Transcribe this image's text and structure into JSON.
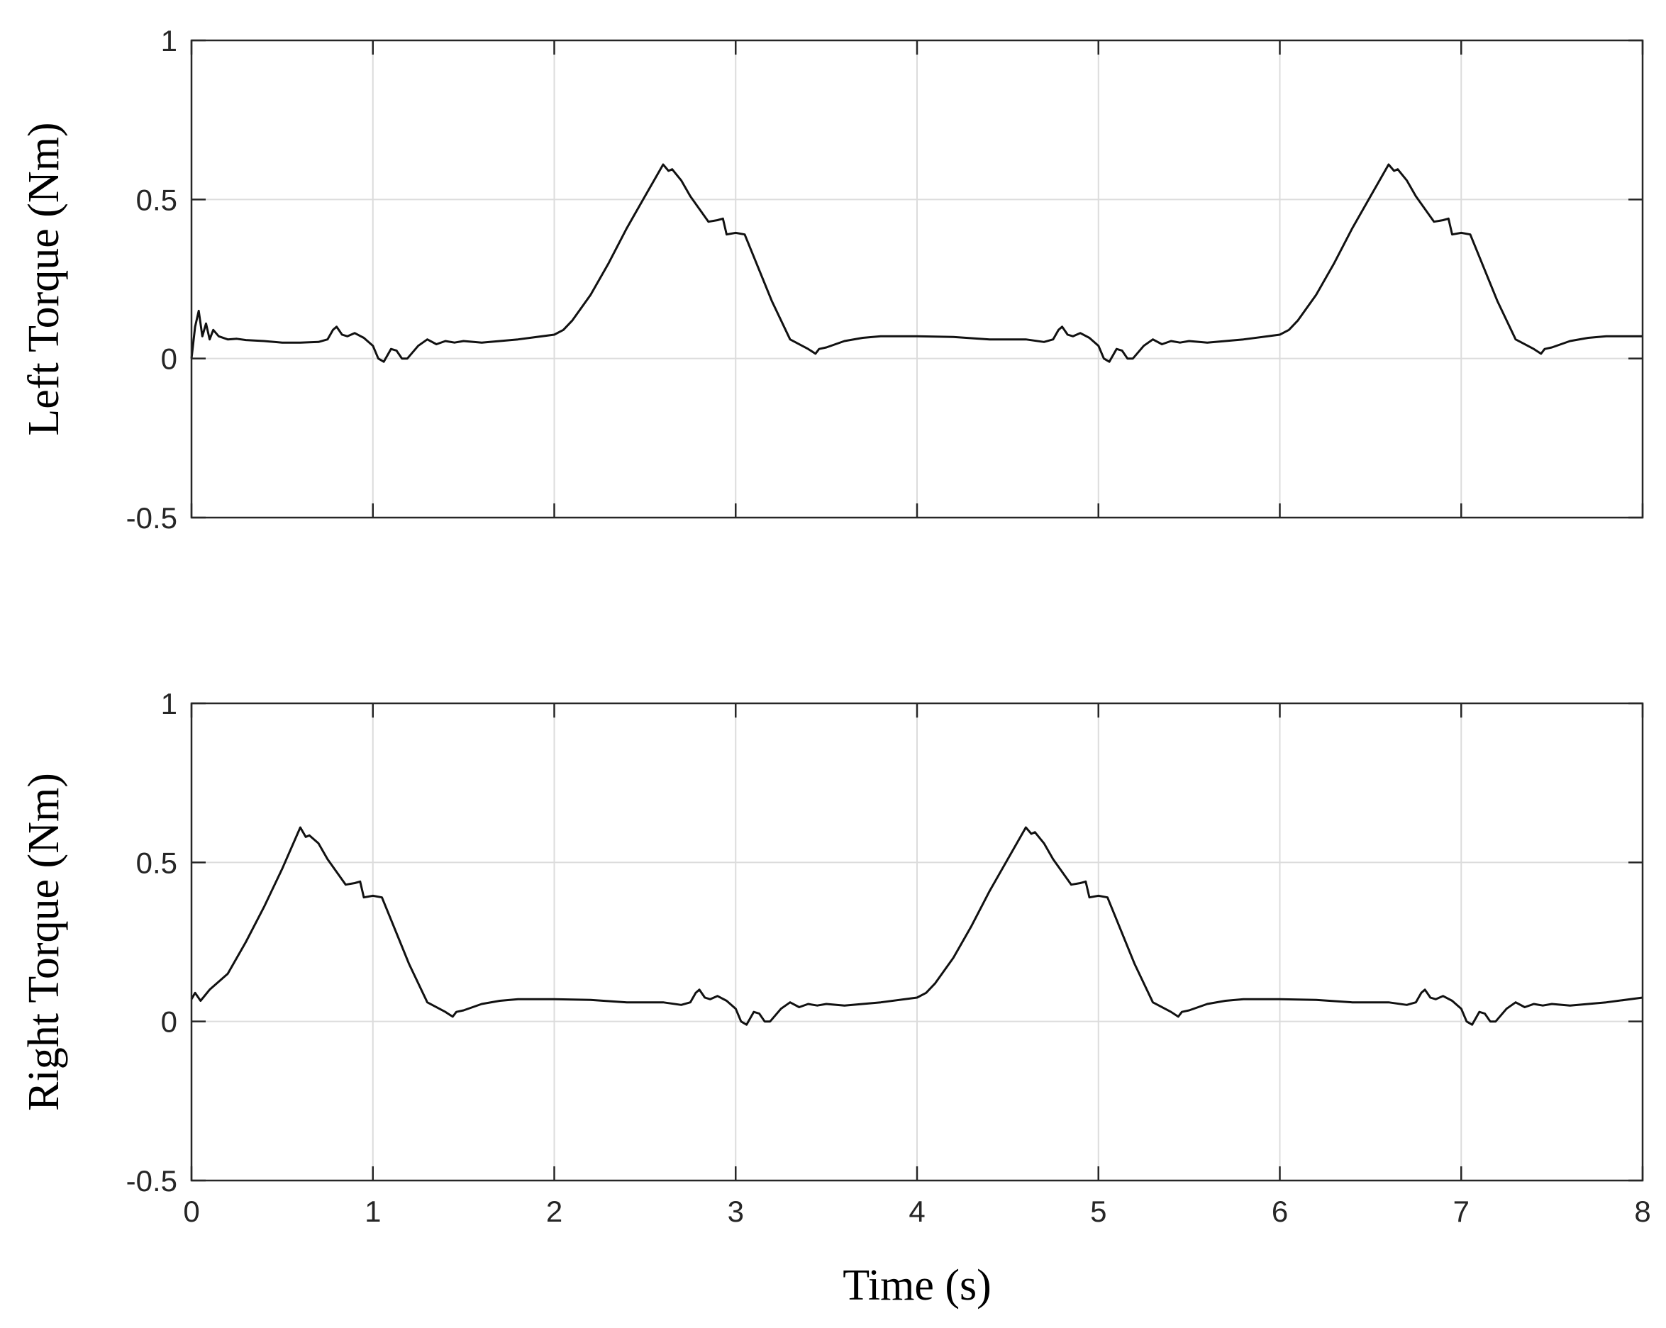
{
  "chart_data": [
    {
      "type": "line",
      "ylabel": "Left Torque (Nm)",
      "xlabel": "",
      "xlim": [
        0,
        8
      ],
      "ylim": [
        -0.5,
        1
      ],
      "xticks": [
        0,
        1,
        2,
        3,
        4,
        5,
        6,
        7,
        8
      ],
      "xtick_labels": [
        "",
        "",
        "",
        "",
        "",
        "",
        "",
        "",
        ""
      ],
      "yticks": [
        -0.5,
        0,
        0.5,
        1
      ],
      "ytick_labels": [
        "-0.5",
        "0",
        "0.5",
        "1"
      ],
      "grid": true,
      "series": [
        {
          "color": "#111111",
          "x": [
            0,
            0.02,
            0.04,
            0.06,
            0.08,
            0.1,
            0.12,
            0.15,
            0.2,
            0.25,
            0.3,
            0.4,
            0.5,
            0.6,
            0.7,
            0.75,
            0.78,
            0.8,
            0.83,
            0.86,
            0.9,
            0.95,
            1.0,
            1.03,
            1.06,
            1.08,
            1.1,
            1.13,
            1.16,
            1.19,
            1.22,
            1.25,
            1.3,
            1.35,
            1.4,
            1.45,
            1.5,
            1.6,
            1.8,
            2.0,
            2.05,
            2.1,
            2.2,
            2.3,
            2.4,
            2.5,
            2.6,
            2.63,
            2.65,
            2.7,
            2.75,
            2.8,
            2.85,
            2.9,
            2.93,
            2.95,
            3.0,
            3.05,
            3.1,
            3.15,
            3.2,
            3.3,
            3.4,
            3.44,
            3.46,
            3.5,
            3.6,
            3.7,
            3.8,
            4.0,
            4.2,
            4.4,
            4.6,
            4.7,
            4.75,
            4.78,
            4.8,
            4.83,
            4.86,
            4.9,
            4.95,
            5.0,
            5.03,
            5.06,
            5.08,
            5.1,
            5.13,
            5.16,
            5.19,
            5.22,
            5.25,
            5.3,
            5.35,
            5.4,
            5.45,
            5.5,
            5.6,
            5.8,
            6.0,
            6.05,
            6.1,
            6.2,
            6.3,
            6.4,
            6.5,
            6.6,
            6.63,
            6.65,
            6.7,
            6.75,
            6.8,
            6.85,
            6.9,
            6.93,
            6.95,
            7.0,
            7.05,
            7.1,
            7.15,
            7.2,
            7.3,
            7.4,
            7.44,
            7.46,
            7.5,
            7.6,
            7.7,
            7.8,
            8.0
          ],
          "y": [
            0.0,
            0.1,
            0.15,
            0.07,
            0.11,
            0.06,
            0.09,
            0.07,
            0.06,
            0.062,
            0.058,
            0.055,
            0.05,
            0.05,
            0.052,
            0.06,
            0.09,
            0.1,
            0.075,
            0.07,
            0.08,
            0.065,
            0.04,
            0.0,
            -0.01,
            0.01,
            0.03,
            0.025,
            0.0,
            0.0,
            0.02,
            0.04,
            0.06,
            0.045,
            0.055,
            0.05,
            0.055,
            0.05,
            0.06,
            0.075,
            0.09,
            0.12,
            0.2,
            0.3,
            0.41,
            0.51,
            0.61,
            0.59,
            0.595,
            0.56,
            0.51,
            0.47,
            0.43,
            0.435,
            0.44,
            0.39,
            0.395,
            0.39,
            0.32,
            0.25,
            0.18,
            0.06,
            0.03,
            0.015,
            0.03,
            0.035,
            0.055,
            0.065,
            0.07,
            0.07,
            0.068,
            0.06,
            0.06,
            0.052,
            0.06,
            0.09,
            0.1,
            0.075,
            0.07,
            0.08,
            0.065,
            0.04,
            0.0,
            -0.01,
            0.01,
            0.03,
            0.025,
            0.0,
            0.0,
            0.02,
            0.04,
            0.06,
            0.045,
            0.055,
            0.05,
            0.055,
            0.05,
            0.06,
            0.075,
            0.09,
            0.12,
            0.2,
            0.3,
            0.41,
            0.51,
            0.61,
            0.59,
            0.595,
            0.56,
            0.51,
            0.47,
            0.43,
            0.435,
            0.44,
            0.39,
            0.395,
            0.39,
            0.32,
            0.25,
            0.18,
            0.06,
            0.03,
            0.015,
            0.03,
            0.035,
            0.055,
            0.065,
            0.07,
            0.07
          ]
        }
      ]
    },
    {
      "type": "line",
      "ylabel": "Right Torque (Nm)",
      "xlabel": "Time (s)",
      "xlim": [
        0,
        8
      ],
      "ylim": [
        -0.5,
        1
      ],
      "xticks": [
        0,
        1,
        2,
        3,
        4,
        5,
        6,
        7,
        8
      ],
      "xtick_labels": [
        "0",
        "1",
        "2",
        "3",
        "4",
        "5",
        "6",
        "7",
        "8"
      ],
      "yticks": [
        -0.5,
        0,
        0.5,
        1
      ],
      "ytick_labels": [
        "-0.5",
        "0",
        "0.5",
        "1"
      ],
      "grid": true,
      "series": [
        {
          "color": "#111111",
          "x": [
            0,
            0.02,
            0.05,
            0.1,
            0.2,
            0.3,
            0.4,
            0.5,
            0.6,
            0.63,
            0.65,
            0.7,
            0.75,
            0.8,
            0.85,
            0.9,
            0.93,
            0.95,
            1.0,
            1.05,
            1.1,
            1.15,
            1.2,
            1.3,
            1.4,
            1.44,
            1.46,
            1.5,
            1.6,
            1.7,
            1.8,
            2.0,
            2.2,
            2.4,
            2.6,
            2.7,
            2.75,
            2.78,
            2.8,
            2.83,
            2.86,
            2.9,
            2.95,
            3.0,
            3.03,
            3.06,
            3.08,
            3.1,
            3.13,
            3.16,
            3.19,
            3.22,
            3.25,
            3.3,
            3.35,
            3.4,
            3.45,
            3.5,
            3.6,
            3.8,
            4.0,
            4.05,
            4.1,
            4.2,
            4.3,
            4.4,
            4.5,
            4.6,
            4.63,
            4.65,
            4.7,
            4.75,
            4.8,
            4.85,
            4.9,
            4.93,
            4.95,
            5.0,
            5.05,
            5.1,
            5.15,
            5.2,
            5.3,
            5.4,
            5.44,
            5.46,
            5.5,
            5.6,
            5.7,
            5.8,
            6.0,
            6.2,
            6.4,
            6.6,
            6.7,
            6.75,
            6.78,
            6.8,
            6.83,
            6.86,
            6.9,
            6.95,
            7.0,
            7.03,
            7.06,
            7.08,
            7.1,
            7.13,
            7.16,
            7.19,
            7.22,
            7.25,
            7.3,
            7.35,
            7.4,
            7.45,
            7.5,
            7.6,
            7.8,
            8.0
          ],
          "y": [
            0.07,
            0.09,
            0.065,
            0.1,
            0.15,
            0.25,
            0.36,
            0.48,
            0.61,
            0.58,
            0.585,
            0.56,
            0.51,
            0.47,
            0.43,
            0.435,
            0.44,
            0.39,
            0.395,
            0.39,
            0.32,
            0.25,
            0.18,
            0.06,
            0.03,
            0.015,
            0.03,
            0.035,
            0.055,
            0.065,
            0.07,
            0.07,
            0.068,
            0.06,
            0.06,
            0.052,
            0.06,
            0.09,
            0.1,
            0.075,
            0.07,
            0.08,
            0.065,
            0.04,
            0.0,
            -0.01,
            0.01,
            0.03,
            0.025,
            0.0,
            0.0,
            0.02,
            0.04,
            0.06,
            0.045,
            0.055,
            0.05,
            0.055,
            0.05,
            0.06,
            0.075,
            0.09,
            0.12,
            0.2,
            0.3,
            0.41,
            0.51,
            0.61,
            0.59,
            0.595,
            0.56,
            0.51,
            0.47,
            0.43,
            0.435,
            0.44,
            0.39,
            0.395,
            0.39,
            0.32,
            0.25,
            0.18,
            0.06,
            0.03,
            0.015,
            0.03,
            0.035,
            0.055,
            0.065,
            0.07,
            0.07,
            0.068,
            0.06,
            0.06,
            0.052,
            0.06,
            0.09,
            0.1,
            0.075,
            0.07,
            0.08,
            0.065,
            0.04,
            0.0,
            -0.01,
            0.01,
            0.03,
            0.025,
            0.0,
            0.0,
            0.02,
            0.04,
            0.06,
            0.045,
            0.055,
            0.05,
            0.055,
            0.05,
            0.06,
            0.075
          ]
        }
      ]
    }
  ]
}
